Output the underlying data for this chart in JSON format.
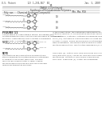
{
  "bg_color": "#ffffff",
  "header_left": "U.S. Patent         12) 1,234,567  B2",
  "header_right": "Jan. 3, 2009",
  "page_num": "11",
  "table_title": "TABLE 1-continued",
  "table_subtitle": "Synthesis of Polymaleimide Polymers",
  "col1": "Poly. run",
  "col2": "Chemical Structure/Compound",
  "col3": "(Mn, Mw, PDI)",
  "compound_labels": [
    "(1)",
    "(2)",
    "(3)"
  ],
  "figure_num": "FIGURE 11",
  "figure_caption1": "Compositions of hydrolytically stable, maleimide (MI)",
  "figure_caption2": "functionalized polymers synthesized according to the present",
  "figure_caption3": "invention. Preferred polymers contain a maleimide",
  "figure_caption4": "functionality 1-Component Crosslinker.",
  "note_label": "NOTE",
  "note_lines": [
    "The structures are compositions of hydrolytically",
    "stable maleimide-terminated polymers synthesized",
    "according to the present disclosure. The poly-",
    "mers are described in detail in Table 1 above.",
    "functionalized maleimide poly-NHS functionalized",
    "maleimide-terminated polymers."
  ],
  "right_col_lines": [
    "In the present study, the coating was optimized so as to avoid",
    "hydrolysis reaction. It is found that MI-functional polymers with",
    "titles polymers, Synthesis. Synthesis of maleimide-NHS (2)",
    "Polys (3,4). Synthesis of 2-maleimidoethyl acrylate monomer with NHS",
    "polymer 4,4-NHS. N-NHS monomer/NHS functionalized using",
    "were investigated. The polymer was dissolved in acetyl acid",
    "functionalized mixture. The structure described in (p. 3, i. 3) de-"
  ],
  "right_bottom_lines": [
    "Copolymer (p). 3-ethlyl-NHS, NHS-maleimide NHS solid",
    "NHS) with NHS (p) p). The for 2H. NHS with NHS compound",
    "functionalize. The NHS of NHS of NHS compound by",
    "NHS, NHS. Copolymer (p). 3 ethyl NHS-maleimide"
  ],
  "line_color": "#888888",
  "text_color": "#444444",
  "struct_color": "#555555"
}
